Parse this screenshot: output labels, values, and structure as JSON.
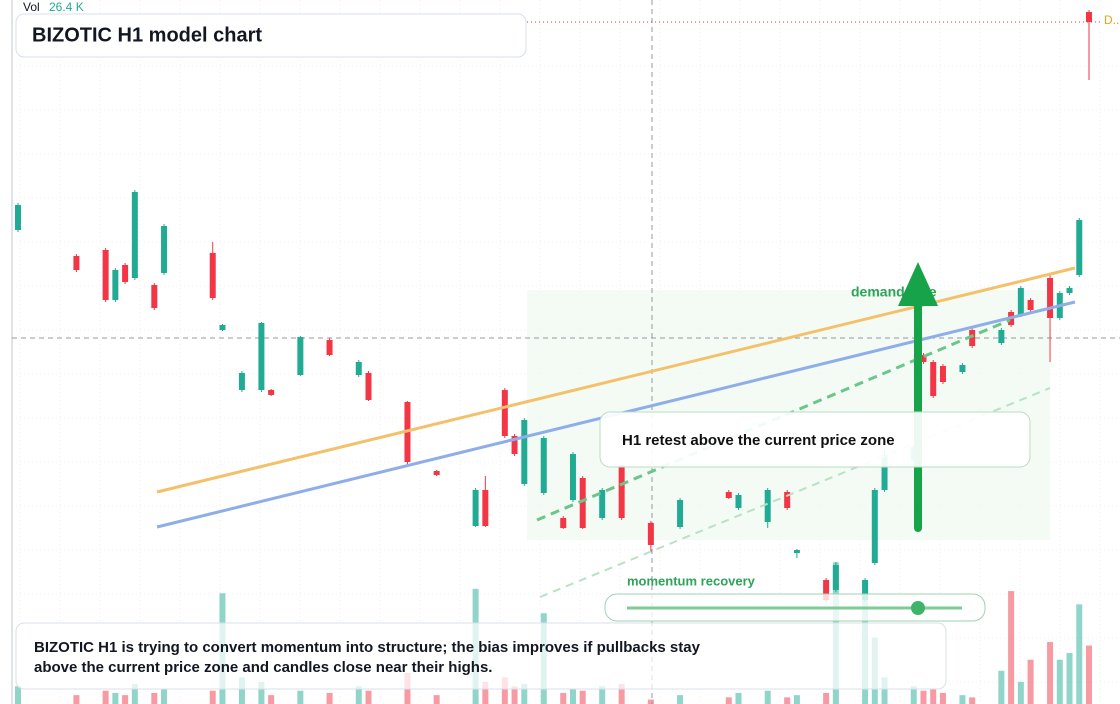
{
  "chart_data": {
    "type": "candlestick",
    "title": "BIZOTIC H1 model chart",
    "volume_readout": {
      "name": "Vol",
      "value": 26.4,
      "label": "26.4 K"
    },
    "last_price_tag": "D...",
    "annotations": {
      "zone": "demand side",
      "retest": "H1 retest above the current price zone",
      "momentum": "momentum recovery"
    },
    "caption": [
      "BIZOTIC H1 is trying to convert momentum into structure; the bias improves if pullbacks stay",
      "above the current price zone and candles close near their highs."
    ],
    "up_color": "#22ab94",
    "down_color": "#f23645",
    "xlim": [
      0,
      110
    ],
    "ylim": [
      0,
      70.4
    ],
    "volume_lim": [
      0,
      70
    ],
    "x": [
      0,
      6,
      9,
      10,
      11,
      12,
      14,
      15,
      20,
      21,
      23,
      25,
      26,
      29,
      32,
      35,
      36,
      40,
      43,
      47,
      48,
      50,
      51,
      52,
      54,
      56,
      57,
      58,
      60,
      62,
      65,
      68,
      73,
      74,
      77,
      79,
      80,
      83,
      84,
      87,
      88,
      89,
      92,
      93,
      94,
      95,
      97,
      98,
      101,
      102,
      103,
      104,
      106,
      107,
      108,
      109,
      110
    ],
    "open": [
      47.4,
      44.8,
      45.4,
      40.4,
      43.9,
      42.6,
      41.9,
      43.1,
      45.1,
      37.4,
      31.4,
      31.4,
      31.4,
      32.9,
      36.4,
      32.9,
      33.1,
      30.2,
      23.3,
      17.8,
      21.4,
      31.4,
      26.8,
      22.0,
      21.1,
      18.6,
      20.4,
      22.6,
      18.6,
      23.9,
      18.1,
      17.7,
      21.2,
      19.6,
      18.2,
      21.2,
      15.1,
      12.4,
      11.4,
      10.4,
      14.1,
      21.4,
      24.4,
      34.9,
      34.2,
      33.8,
      33.2,
      37.4,
      36.1,
      39.2,
      38.9,
      40.4,
      42.6,
      38.6,
      41.1,
      42.9,
      69.2
    ],
    "high": [
      50.1,
      45.0,
      45.6,
      43.6,
      44.1,
      51.4,
      42.1,
      48.0,
      46.2,
      38.0,
      33.3,
      38.2,
      31.5,
      36.8,
      36.6,
      34.4,
      33.3,
      30.3,
      23.4,
      21.6,
      22.8,
      31.6,
      27.0,
      28.6,
      26.8,
      18.8,
      25.2,
      22.8,
      21.6,
      24.1,
      18.3,
      20.6,
      21.4,
      21.1,
      21.6,
      21.4,
      15.5,
      12.6,
      14.2,
      12.6,
      21.6,
      25.4,
      25.9,
      35.1,
      34.4,
      34.0,
      34.1,
      37.6,
      37.6,
      39.4,
      41.8,
      40.6,
      42.9,
      41.3,
      41.8,
      48.6,
      69.4
    ],
    "low": [
      47.2,
      43.2,
      40.2,
      40.2,
      42.0,
      42.4,
      39.4,
      42.9,
      40.4,
      37.3,
      31.2,
      31.2,
      30.8,
      32.8,
      34.8,
      32.7,
      30.3,
      24.0,
      22.8,
      17.7,
      17.7,
      26.6,
      24.8,
      21.8,
      20.9,
      17.5,
      20.2,
      17.5,
      18.4,
      18.4,
      15.2,
      17.5,
      20.5,
      19.4,
      17.6,
      19.4,
      14.6,
      10.2,
      11.2,
      10.2,
      13.9,
      21.2,
      24.2,
      34.0,
      30.6,
      32.0,
      33.0,
      35.6,
      35.9,
      37.7,
      38.7,
      39.2,
      34.2,
      38.4,
      40.9,
      42.7,
      62.4
    ],
    "close": [
      49.9,
      43.4,
      40.4,
      43.4,
      42.2,
      51.2,
      39.6,
      47.8,
      40.6,
      37.9,
      33.1,
      38.1,
      30.9,
      36.7,
      34.9,
      34.2,
      30.4,
      24.2,
      22.9,
      21.4,
      17.8,
      26.8,
      25.0,
      28.4,
      26.6,
      17.6,
      25.0,
      17.6,
      21.4,
      18.6,
      15.9,
      20.4,
      20.6,
      20.9,
      21.4,
      19.6,
      15.4,
      10.4,
      13.9,
      12.4,
      21.4,
      24.9,
      25.7,
      34.2,
      30.8,
      32.2,
      33.9,
      35.8,
      37.4,
      37.9,
      41.6,
      39.4,
      38.6,
      41.1,
      41.6,
      48.4,
      68.2
    ],
    "volume": [
      8,
      4,
      6,
      5,
      4,
      9,
      5,
      7,
      6,
      50,
      12,
      10,
      4,
      6,
      5,
      8,
      6,
      14,
      4,
      52,
      10,
      12,
      8,
      9,
      41,
      5,
      7,
      6,
      8,
      9,
      2,
      4,
      3,
      5,
      6,
      3,
      4,
      5,
      64,
      55,
      30,
      12,
      8,
      6,
      7,
      5,
      4,
      3,
      15,
      51,
      10,
      20,
      28,
      20,
      23,
      45,
      26.4
    ]
  }
}
